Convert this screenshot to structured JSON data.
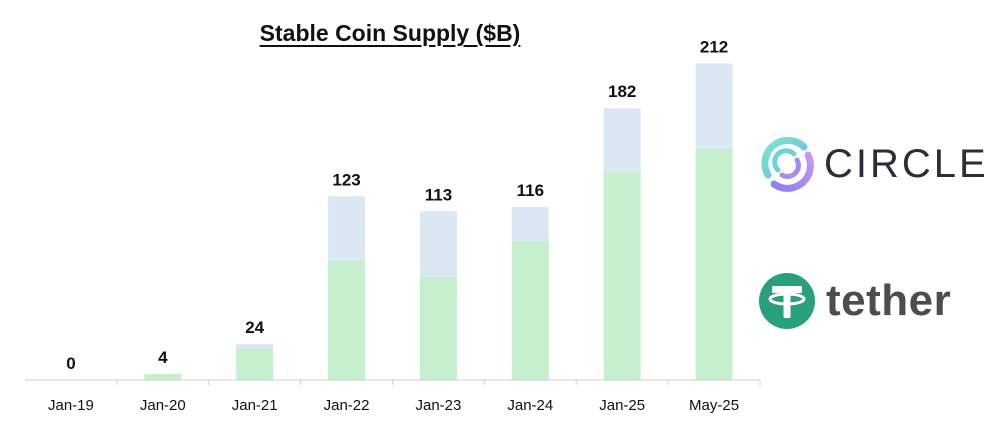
{
  "chart_data": {
    "type": "bar",
    "title": "Stable Coin Supply ($B)",
    "categories": [
      "Jan-19",
      "Jan-20",
      "Jan-21",
      "Jan-22",
      "Jan-23",
      "Jan-24",
      "Jan-25",
      "May-25"
    ],
    "totals": [
      0,
      4,
      24,
      123,
      113,
      116,
      182,
      212
    ],
    "stacked": true,
    "series": [
      {
        "values": [
          0,
          4,
          21,
          80,
          69,
          93,
          139,
          155
        ],
        "color": "#c6efce"
      },
      {
        "values": [
          0,
          0,
          3,
          43,
          44,
          23,
          43,
          57
        ],
        "color": "#dbe8f4"
      }
    ],
    "ylim": [
      0,
      225
    ],
    "grid": false,
    "xlabel": "",
    "ylabel": ""
  },
  "logos": {
    "circle": {
      "text": "CIRCLE",
      "icon": "circle-logo-icon"
    },
    "tether": {
      "text": "tether",
      "icon": "tether-logo-icon",
      "color": "#26a17b"
    }
  }
}
